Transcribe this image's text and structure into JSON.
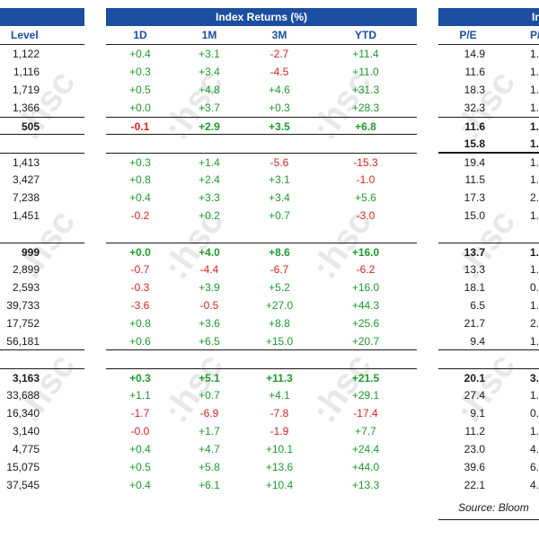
{
  "header": {
    "index_returns_title": "Index Returns (%)",
    "right_title_partial": "In",
    "left_title_partial": ""
  },
  "left": {
    "column_header": "Level",
    "rows": [
      "1,122",
      "1,116",
      "1,719",
      "1,366",
      "505",
      "",
      "1,413",
      "3,427",
      "7,238",
      "1,451",
      "",
      "999",
      "2,899",
      "2,593",
      "39,733",
      "17,752",
      "56,181",
      "",
      "3,163",
      "33,688",
      "16,340",
      "3,140",
      "4,775",
      "15,075",
      "37,545"
    ]
  },
  "returns": {
    "column_headers": [
      "1D",
      "1M",
      "3M",
      "YTD"
    ],
    "rows": [
      [
        "+0.4",
        "+3.1",
        "-2.7",
        "+11.4"
      ],
      [
        "+0.3",
        "+3.4",
        "-4.5",
        "+11.0"
      ],
      [
        "+0.5",
        "+4.8",
        "+4.6",
        "+31.3"
      ],
      [
        "+0.0",
        "+3.7",
        "+0.3",
        "+28.3"
      ],
      [
        "-0.1",
        "+2.9",
        "+3.5",
        "+6.8"
      ],
      [
        "",
        "",
        "",
        ""
      ],
      [
        "+0.3",
        "+1.4",
        "-5.6",
        "-15.3"
      ],
      [
        "+0.8",
        "+2.4",
        "+3.1",
        "-1.0"
      ],
      [
        "+0.4",
        "+3.3",
        "+3.4",
        "+5.6"
      ],
      [
        "-0.2",
        "+0.2",
        "+0.7",
        "-3.0"
      ],
      [
        "",
        "",
        "",
        ""
      ],
      [
        "+0.0",
        "+4.0",
        "+8.6",
        "+16.0"
      ],
      [
        "-0.7",
        "-4.4",
        "-6.7",
        "-6.2"
      ],
      [
        "-0.3",
        "+3.9",
        "+5.2",
        "+16.0"
      ],
      [
        "-3.6",
        "-0.5",
        "+27.0",
        "+44.3"
      ],
      [
        "+0.8",
        "+3.6",
        "+8.8",
        "+25.6"
      ],
      [
        "+0.6",
        "+6.5",
        "+15.0",
        "+20.7"
      ],
      [
        "",
        "",
        "",
        ""
      ],
      [
        "+0.3",
        "+5.1",
        "+11.3",
        "+21.5"
      ],
      [
        "+1.1",
        "+0.7",
        "+4.1",
        "+29.1"
      ],
      [
        "-1.7",
        "-6.9",
        "-7.8",
        "-17.4"
      ],
      [
        "-0.0",
        "+1.7",
        "-1.9",
        "+7.7"
      ],
      [
        "+0.4",
        "+4.7",
        "+10.1",
        "+24.4"
      ],
      [
        "+0.5",
        "+5.8",
        "+13.6",
        "+44.0"
      ],
      [
        "+0.4",
        "+6.1",
        "+10.4",
        "+13.3"
      ]
    ]
  },
  "valuation": {
    "column_headers": [
      "P/E",
      "P/"
    ],
    "rows": [
      [
        "14.9",
        "1."
      ],
      [
        "11.6",
        "1."
      ],
      [
        "18.3",
        "1."
      ],
      [
        "32.3",
        "1."
      ],
      [
        "11.6",
        "1."
      ],
      [
        "15.8",
        "1."
      ],
      [
        "19.4",
        "1."
      ],
      [
        "11.5",
        "1."
      ],
      [
        "17.3",
        "2."
      ],
      [
        "15.0",
        "1."
      ],
      [
        "",
        ""
      ],
      [
        "13.7",
        "1."
      ],
      [
        "13.3",
        "1."
      ],
      [
        "18.1",
        "0."
      ],
      [
        "6.5",
        "1."
      ],
      [
        "21.7",
        "2."
      ],
      [
        "9.4",
        "1."
      ],
      [
        "",
        ""
      ],
      [
        "20.1",
        "3."
      ],
      [
        "27.4",
        "1."
      ],
      [
        "9.1",
        "0."
      ],
      [
        "11.2",
        "1."
      ],
      [
        "23.0",
        "4."
      ],
      [
        "39.6",
        "6."
      ],
      [
        "22.1",
        "4."
      ]
    ]
  },
  "source_text": "Source: Bloom",
  "watermark_text": ":hsc",
  "colors": {
    "header_bar": "#1b4ea0",
    "positive": "#1e9a2e",
    "negative": "#d61f1f"
  }
}
